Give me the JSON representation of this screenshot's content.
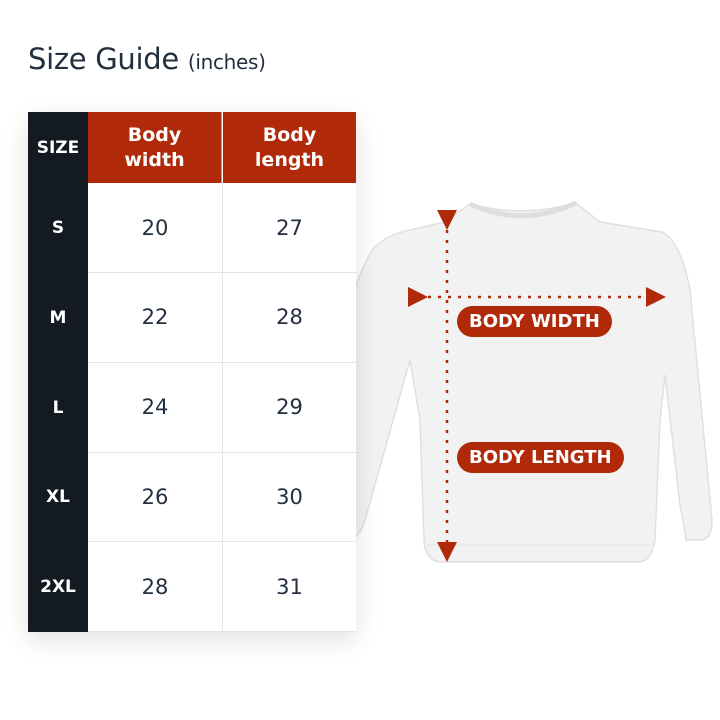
{
  "title": {
    "main": "Size Guide",
    "unit": "(inches)"
  },
  "table": {
    "headers": [
      "SIZE",
      "Body width",
      "Body length"
    ],
    "rows": [
      {
        "size": "S",
        "width": "20",
        "length": "27"
      },
      {
        "size": "M",
        "width": "22",
        "length": "28"
      },
      {
        "size": "L",
        "width": "24",
        "length": "29"
      },
      {
        "size": "XL",
        "width": "26",
        "length": "30"
      },
      {
        "size": "2XL",
        "width": "28",
        "length": "31"
      }
    ]
  },
  "diagram": {
    "width_label": "BODY WIDTH",
    "length_label": "BODY LENGTH",
    "icon": "sweatshirt-icon"
  },
  "colors": {
    "accent": "#b02a0a",
    "dark": "#131a22",
    "text": "#232f3e"
  }
}
